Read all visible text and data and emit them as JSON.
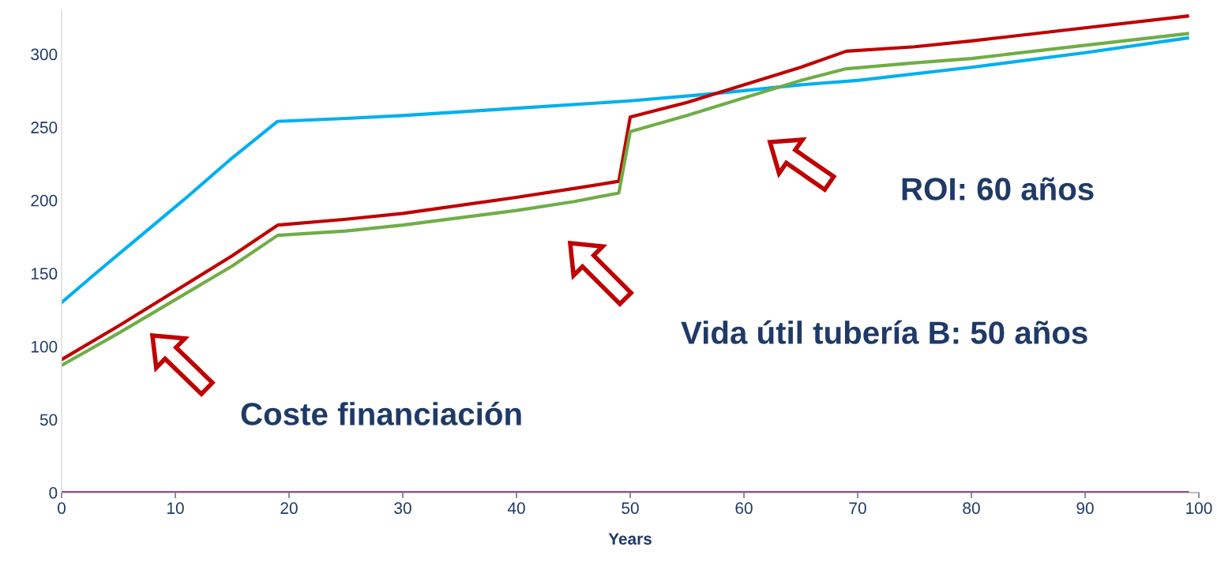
{
  "chart_data": {
    "type": "line",
    "xlabel": "Years",
    "series": [
      {
        "color": "#00b0f0",
        "x": [
          0,
          3,
          7,
          11,
          15,
          19,
          25,
          30,
          40,
          50,
          56,
          60,
          65,
          70,
          80,
          90,
          99
        ],
        "values": [
          130,
          150,
          176,
          202,
          229,
          254,
          256,
          258,
          263,
          268,
          272,
          275,
          279,
          282,
          291,
          301,
          311
        ]
      },
      {
        "color": "#c00000",
        "x": [
          0,
          5,
          10,
          15,
          19,
          25,
          30,
          40,
          45,
          49,
          50,
          55,
          60,
          65,
          69,
          75,
          80,
          90,
          99
        ],
        "values": [
          91,
          114,
          138,
          162,
          183,
          187,
          191,
          202,
          208,
          213,
          257,
          267,
          279,
          291,
          302,
          305,
          309,
          318,
          326
        ]
      },
      {
        "color": "#70ad47",
        "x": [
          0,
          5,
          10,
          15,
          19,
          25,
          30,
          40,
          45,
          49,
          50,
          55,
          60,
          65,
          69,
          75,
          80,
          90,
          99
        ],
        "values": [
          87,
          109,
          132,
          155,
          176,
          179,
          183,
          193,
          199,
          205,
          247,
          258,
          270,
          282,
          290,
          294,
          297,
          306,
          314
        ]
      },
      {
        "color": "#a0409a",
        "x": [
          0,
          99
        ],
        "values": [
          0,
          0
        ]
      }
    ],
    "xlim": [
      0,
      100
    ],
    "xticks": [
      0,
      10,
      20,
      30,
      40,
      50,
      60,
      70,
      80,
      90,
      100
    ],
    "ylim": [
      0,
      330
    ],
    "yticks": [
      0,
      50,
      100,
      150,
      200,
      250,
      300
    ],
    "grid": false,
    "legend": false,
    "marker": "none",
    "line_style": "solid",
    "annotations": [
      "Coste financiación",
      "Vida útil tubería B: 50 años",
      "ROI: 60 años"
    ]
  }
}
